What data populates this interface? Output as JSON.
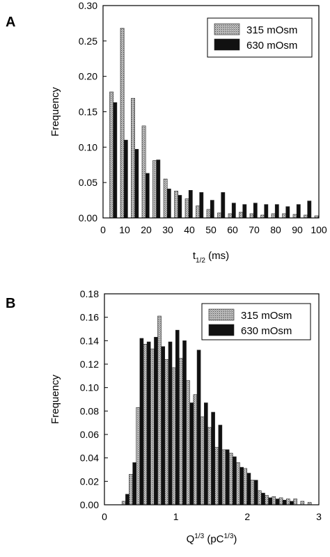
{
  "chart_data": [
    {
      "panel": "A",
      "type": "bar",
      "xlabel": {
        "base": "t",
        "sub": "1/2",
        "suffix": " (ms)"
      },
      "ylabel": "Frequency",
      "xlim": [
        0,
        100
      ],
      "ylim": [
        0,
        0.3
      ],
      "xticks": [
        "0",
        "10",
        "20",
        "30",
        "40",
        "50",
        "60",
        "70",
        "80",
        "90",
        "100"
      ],
      "yticks": [
        "0.00",
        "0.05",
        "0.10",
        "0.15",
        "0.20",
        "0.25",
        "0.30"
      ],
      "legend_position": "top-right",
      "x": [
        5,
        10,
        15,
        20,
        25,
        30,
        35,
        40,
        45,
        50,
        55,
        60,
        65,
        70,
        75,
        80,
        85,
        90,
        95,
        100
      ],
      "series": [
        {
          "name": "315 mOsm",
          "color": "#a6a6a6",
          "values": [
            0.178,
            0.268,
            0.169,
            0.13,
            0.081,
            0.055,
            0.038,
            0.027,
            0.017,
            0.012,
            0.007,
            0.006,
            0.008,
            0.006,
            0.004,
            0.006,
            0.006,
            0.005,
            0.004,
            0.003
          ]
        },
        {
          "name": "630 mOsm",
          "color": "#111111",
          "values": [
            0.163,
            0.11,
            0.097,
            0.063,
            0.082,
            0.041,
            0.032,
            0.039,
            0.036,
            0.025,
            0.036,
            0.021,
            0.019,
            0.021,
            0.019,
            0.019,
            0.016,
            0.019,
            0.024,
            0.0
          ]
        }
      ]
    },
    {
      "panel": "B",
      "type": "bar",
      "xlabel": {
        "base": "Q",
        "sup": "1/3",
        "mid": " (pC",
        "sup2": "1/3",
        "suffix": ")"
      },
      "ylabel": "Frequency",
      "xlim": [
        0,
        3
      ],
      "ylim": [
        0,
        0.18
      ],
      "xticks": [
        "0",
        "1",
        "2",
        "3"
      ],
      "yticks": [
        "0.00",
        "0.02",
        "0.04",
        "0.06",
        "0.08",
        "0.10",
        "0.12",
        "0.14",
        "0.16",
        "0.18"
      ],
      "legend_position": "top-right",
      "x": [
        0.3,
        0.4,
        0.5,
        0.6,
        0.7,
        0.8,
        0.9,
        1.0,
        1.1,
        1.2,
        1.3,
        1.4,
        1.5,
        1.6,
        1.7,
        1.8,
        1.9,
        2.0,
        2.1,
        2.2,
        2.3,
        2.4,
        2.5,
        2.6,
        2.7,
        2.8,
        2.9,
        3.0
      ],
      "series": [
        {
          "name": "315 mOsm",
          "color": "#a6a6a6",
          "values": [
            0.003,
            0.026,
            0.083,
            0.137,
            0.133,
            0.161,
            0.124,
            0.117,
            0.125,
            0.106,
            0.094,
            0.075,
            0.066,
            0.049,
            0.047,
            0.044,
            0.036,
            0.031,
            0.021,
            0.012,
            0.008,
            0.007,
            0.006,
            0.005,
            0.005,
            0.003,
            0.002,
            0.0
          ]
        },
        {
          "name": "630 mOsm",
          "color": "#111111",
          "values": [
            0.009,
            0.036,
            0.142,
            0.139,
            0.143,
            0.135,
            0.139,
            0.149,
            0.14,
            0.087,
            0.132,
            0.087,
            0.079,
            0.068,
            0.047,
            0.041,
            0.032,
            0.027,
            0.021,
            0.01,
            0.006,
            0.005,
            0.004,
            0.003,
            0.0,
            0.0,
            0.0,
            0.0
          ]
        }
      ]
    }
  ]
}
